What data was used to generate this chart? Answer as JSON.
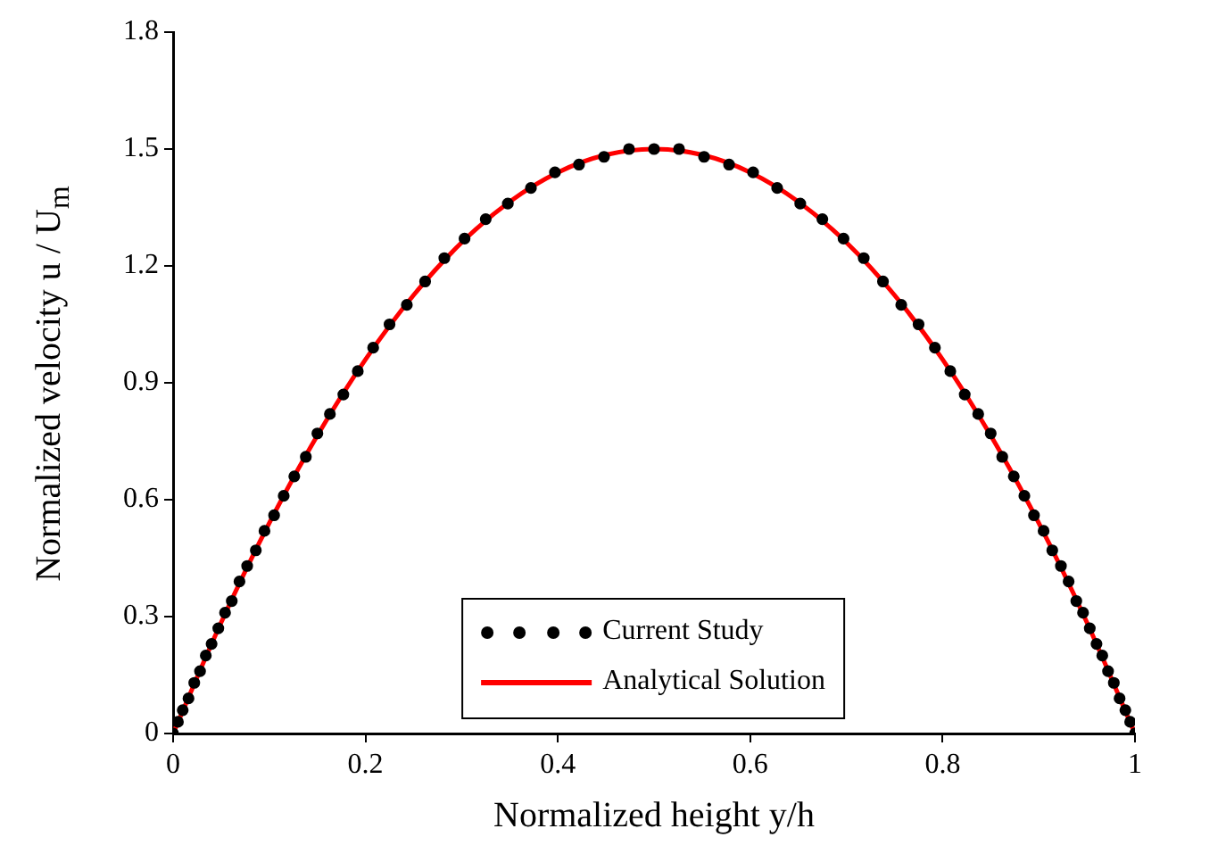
{
  "chart_data": {
    "type": "scatter",
    "xlabel": "Normalized height y/h",
    "ylabel": "Normalized velocity u / U$_{m}$",
    "xlim": [
      0,
      1
    ],
    "xticks": [
      0,
      0.2,
      0.4,
      0.6,
      0.8,
      1
    ],
    "ylim": [
      0,
      1.8
    ],
    "yticks": [
      0,
      0.3,
      0.6,
      0.9,
      1.2,
      1.5,
      1.8
    ],
    "grid": false,
    "legend": "bottom",
    "series": [
      {
        "name": "Current Study",
        "marker": "circle",
        "color": "#000000",
        "x": [
          0,
          0.005,
          0.01,
          0.016,
          0.022,
          0.028,
          0.034,
          0.04,
          0.047,
          0.054,
          0.061,
          0.069,
          0.077,
          0.086,
          0.095,
          0.105,
          0.115,
          0.126,
          0.138,
          0.15,
          0.163,
          0.177,
          0.192,
          0.208,
          0.225,
          0.243,
          0.262,
          0.282,
          0.303,
          0.325,
          0.348,
          0.372,
          0.397,
          0.422,
          0.448,
          0.474,
          0.5,
          0.526,
          0.552,
          0.578,
          0.603,
          0.628,
          0.652,
          0.675,
          0.697,
          0.718,
          0.738,
          0.757,
          0.775,
          0.792,
          0.808,
          0.823,
          0.837,
          0.85,
          0.862,
          0.874,
          0.885,
          0.895,
          0.905,
          0.914,
          0.923,
          0.931,
          0.939,
          0.946,
          0.953,
          0.96,
          0.966,
          0.972,
          0.978,
          0.984,
          0.99,
          0.995,
          1
        ],
        "values": [
          0,
          0.03,
          0.06,
          0.09,
          0.13,
          0.16,
          0.2,
          0.23,
          0.27,
          0.31,
          0.34,
          0.39,
          0.43,
          0.47,
          0.52,
          0.56,
          0.61,
          0.66,
          0.71,
          0.77,
          0.82,
          0.87,
          0.93,
          0.99,
          1.05,
          1.1,
          1.16,
          1.22,
          1.27,
          1.32,
          1.36,
          1.4,
          1.44,
          1.46,
          1.48,
          1.5,
          1.5,
          1.5,
          1.48,
          1.46,
          1.44,
          1.4,
          1.36,
          1.32,
          1.27,
          1.22,
          1.16,
          1.1,
          1.05,
          0.99,
          0.93,
          0.87,
          0.82,
          0.77,
          0.71,
          0.66,
          0.61,
          0.56,
          0.52,
          0.47,
          0.43,
          0.39,
          0.34,
          0.31,
          0.27,
          0.23,
          0.2,
          0.16,
          0.13,
          0.09,
          0.06,
          0.03,
          0
        ]
      },
      {
        "name": "Analytical Solution",
        "type": "line",
        "marker": "none",
        "line_style": "solid",
        "color": "#ff0000",
        "x": [
          0,
          0.05,
          0.1,
          0.15,
          0.2,
          0.25,
          0.3,
          0.35,
          0.4,
          0.45,
          0.5,
          0.55,
          0.6,
          0.65,
          0.7,
          0.75,
          0.8,
          0.85,
          0.9,
          0.95,
          1
        ],
        "values": [
          0,
          0.285,
          0.54,
          0.765,
          0.96,
          1.125,
          1.26,
          1.365,
          1.44,
          1.485,
          1.5,
          1.485,
          1.44,
          1.365,
          1.26,
          1.125,
          0.96,
          0.765,
          0.54,
          0.285,
          0
        ]
      }
    ]
  }
}
